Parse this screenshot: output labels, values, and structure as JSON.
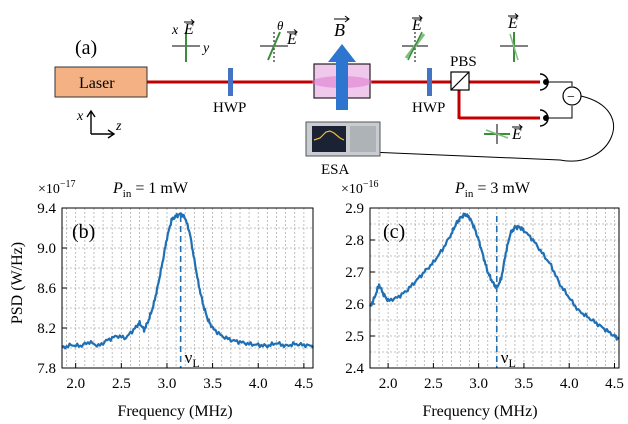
{
  "panel_a": {
    "label": "(a)",
    "laser_label": "Laser",
    "hwp1_label": "HWP",
    "hwp2_label": "HWP",
    "pbs_label": "PBS",
    "esa_label": "ESA",
    "axis_x": "x",
    "axis_z": "z",
    "axis_y": "y",
    "field_symbol": "E",
    "theta_symbol": "θ",
    "b_symbol": "B",
    "minus_symbol": "−",
    "colors": {
      "laser_box": "#f4b183",
      "beam": "#c00000",
      "hwp": "#4472c4",
      "arrow_blue": "#2e75d0",
      "field_green": "#3c8c3c"
    }
  },
  "chart_data": [
    {
      "type": "line",
      "panel_label": "(b)",
      "title_prefix": "P",
      "title_sub": "in",
      "title_suffix": " = 1 mW",
      "exponent_label": "×10",
      "exponent_power": "−17",
      "ylabel": "PSD (W/Hz)",
      "xlabel": "Frequency (MHz)",
      "xlim": [
        1.85,
        4.6
      ],
      "ylim": [
        7.8,
        9.4
      ],
      "xticks": [
        2.0,
        2.5,
        3.0,
        3.5,
        4.0,
        4.5
      ],
      "xtick_labels": [
        "2.0",
        "2.5",
        "3.0",
        "3.5",
        "4.0",
        "4.5"
      ],
      "yticks": [
        7.8,
        8.2,
        8.6,
        9.0,
        9.4
      ],
      "ytick_labels": [
        "7.8",
        "8.2",
        "8.6",
        "9.0",
        "9.4"
      ],
      "grid": true,
      "marker_x": 3.15,
      "marker_label": "ν",
      "marker_sub": "L",
      "series": [
        {
          "x": [
            1.85,
            1.95,
            2.05,
            2.15,
            2.25,
            2.35,
            2.45,
            2.55,
            2.65,
            2.7,
            2.75,
            2.8,
            2.85,
            2.9,
            2.95,
            3.0,
            3.05,
            3.1,
            3.15,
            3.2,
            3.25,
            3.3,
            3.35,
            3.4,
            3.45,
            3.5,
            3.6,
            3.7,
            3.8,
            3.9,
            4.0,
            4.1,
            4.2,
            4.3,
            4.4,
            4.5,
            4.6
          ],
          "y": [
            8.0,
            8.03,
            8.02,
            8.06,
            8.02,
            8.08,
            8.12,
            8.1,
            8.2,
            8.25,
            8.18,
            8.28,
            8.42,
            8.62,
            8.85,
            9.1,
            9.28,
            9.32,
            9.34,
            9.3,
            9.15,
            8.88,
            8.62,
            8.42,
            8.28,
            8.2,
            8.12,
            8.08,
            8.06,
            8.04,
            8.03,
            8.02,
            8.05,
            8.02,
            8.04,
            8.03,
            8.02
          ]
        }
      ]
    },
    {
      "type": "line",
      "panel_label": "(c)",
      "title_prefix": "P",
      "title_sub": "in",
      "title_suffix": " = 3 mW",
      "exponent_label": "×10",
      "exponent_power": "−16",
      "ylabel": "",
      "xlabel": "Frequency (MHz)",
      "xlim": [
        1.8,
        4.55
      ],
      "ylim": [
        2.4,
        2.9
      ],
      "xticks": [
        2.0,
        2.5,
        3.0,
        3.5,
        4.0,
        4.5
      ],
      "xtick_labels": [
        "2.0",
        "2.5",
        "3.0",
        "3.5",
        "4.0",
        "4.5"
      ],
      "yticks": [
        2.4,
        2.5,
        2.6,
        2.7,
        2.8,
        2.9
      ],
      "ytick_labels": [
        "2.4",
        "2.5",
        "2.6",
        "2.7",
        "2.8",
        "2.9"
      ],
      "grid": true,
      "marker_x": 3.2,
      "marker_label": "ν",
      "marker_sub": "L",
      "series": [
        {
          "x": [
            1.8,
            1.85,
            1.9,
            1.95,
            2.0,
            2.1,
            2.2,
            2.3,
            2.4,
            2.5,
            2.6,
            2.7,
            2.75,
            2.8,
            2.85,
            2.9,
            2.95,
            3.0,
            3.05,
            3.1,
            3.15,
            3.2,
            3.25,
            3.3,
            3.35,
            3.4,
            3.45,
            3.5,
            3.6,
            3.7,
            3.8,
            3.9,
            4.0,
            4.1,
            4.2,
            4.3,
            4.4,
            4.5,
            4.55
          ],
          "y": [
            2.59,
            2.62,
            2.66,
            2.63,
            2.61,
            2.62,
            2.64,
            2.67,
            2.7,
            2.73,
            2.77,
            2.82,
            2.85,
            2.87,
            2.88,
            2.87,
            2.84,
            2.8,
            2.75,
            2.7,
            2.67,
            2.65,
            2.68,
            2.76,
            2.82,
            2.84,
            2.84,
            2.83,
            2.8,
            2.76,
            2.72,
            2.66,
            2.62,
            2.58,
            2.56,
            2.54,
            2.52,
            2.5,
            2.49
          ]
        }
      ]
    }
  ]
}
